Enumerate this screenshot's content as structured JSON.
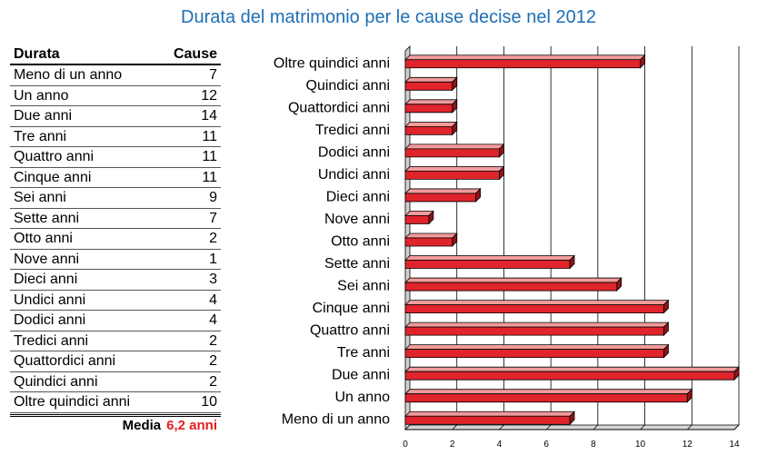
{
  "title": "Durata del matrimonio per le cause decise nel 2012",
  "table": {
    "header_left": "Durata",
    "header_right": "Cause",
    "rows": [
      {
        "label": "Meno di un anno",
        "value": "7"
      },
      {
        "label": "Un anno",
        "value": "12"
      },
      {
        "label": "Due anni",
        "value": "14"
      },
      {
        "label": "Tre anni",
        "value": "11"
      },
      {
        "label": "Quattro anni",
        "value": "11"
      },
      {
        "label": "Cinque anni",
        "value": "11"
      },
      {
        "label": "Sei anni",
        "value": "9"
      },
      {
        "label": "Sette anni",
        "value": "7"
      },
      {
        "label": "Otto anni",
        "value": "2"
      },
      {
        "label": "Nove anni",
        "value": "1"
      },
      {
        "label": "Dieci anni",
        "value": "3"
      },
      {
        "label": "Undici anni",
        "value": "4"
      },
      {
        "label": "Dodici anni",
        "value": "4"
      },
      {
        "label": "Tredici anni",
        "value": "2"
      },
      {
        "label": "Quattordici anni",
        "value": "2"
      },
      {
        "label": "Quindici anni",
        "value": "2"
      },
      {
        "label": "Oltre quindici anni",
        "value": "10"
      }
    ],
    "footer_label": "Media",
    "footer_value": "6,2 anni"
  },
  "colors": {
    "title": "#1f6fb5",
    "bar": "#e0242c",
    "accent": "#e02020"
  },
  "chart_data": {
    "type": "bar",
    "orientation": "horizontal",
    "categories": [
      "Oltre quindici anni",
      "Quindici anni",
      "Quattordici anni",
      "Tredici anni",
      "Dodici anni",
      "Undici anni",
      "Dieci anni",
      "Nove anni",
      "Otto anni",
      "Sette anni",
      "Sei anni",
      "Cinque anni",
      "Quattro anni",
      "Tre anni",
      "Due anni",
      "Un anno",
      "Meno di un anno"
    ],
    "values": [
      10,
      2,
      2,
      2,
      4,
      4,
      3,
      1,
      2,
      7,
      9,
      11,
      11,
      11,
      14,
      12,
      7
    ],
    "xlim": [
      0,
      14
    ],
    "xticks": [
      0,
      2,
      4,
      6,
      8,
      10,
      12,
      14
    ],
    "grid": true,
    "title": "Durata del matrimonio per le cause decise nel 2012",
    "xlabel": "",
    "ylabel": ""
  }
}
